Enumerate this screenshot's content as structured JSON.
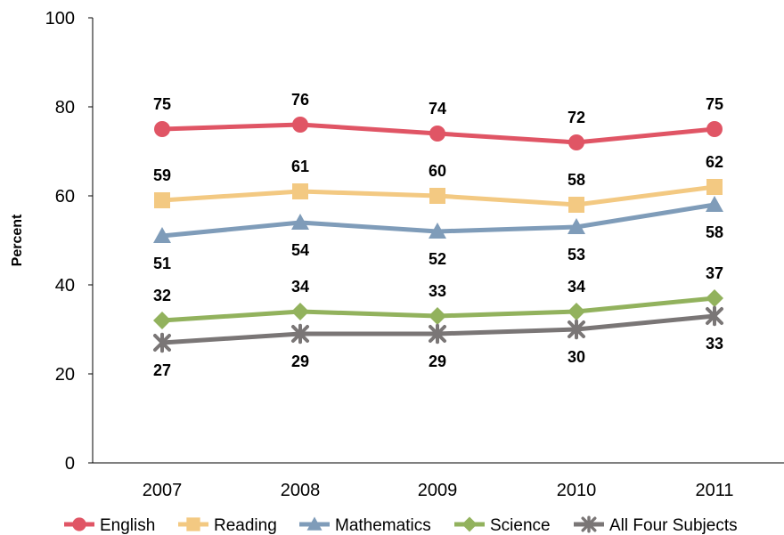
{
  "chart_data": {
    "type": "line",
    "title": "",
    "xlabel": "",
    "ylabel": "Percent",
    "x": [
      "2007",
      "2008",
      "2009",
      "2010",
      "2011"
    ],
    "ylim": [
      0,
      100
    ],
    "yticks": [
      "0",
      "20",
      "40",
      "60",
      "80",
      "100"
    ],
    "grid": false,
    "legend_position": "bottom",
    "series": [
      {
        "name": "English",
        "color": "#e05565",
        "marker": "circle",
        "values": [
          75,
          76,
          74,
          72,
          75
        ],
        "label_side": "above"
      },
      {
        "name": "Reading",
        "color": "#f3c982",
        "marker": "square",
        "values": [
          59,
          61,
          60,
          58,
          62
        ],
        "label_side": "above"
      },
      {
        "name": "Mathematics",
        "color": "#7f9cb9",
        "marker": "triangle",
        "values": [
          51,
          54,
          52,
          53,
          58
        ],
        "label_side": "below"
      },
      {
        "name": "Science",
        "color": "#92b25d",
        "marker": "diamond",
        "values": [
          32,
          34,
          33,
          34,
          37
        ],
        "label_side": "above"
      },
      {
        "name": "All Four Subjects",
        "color": "#7a7676",
        "marker": "star",
        "values": [
          27,
          29,
          29,
          30,
          33
        ],
        "label_side": "below"
      }
    ]
  }
}
